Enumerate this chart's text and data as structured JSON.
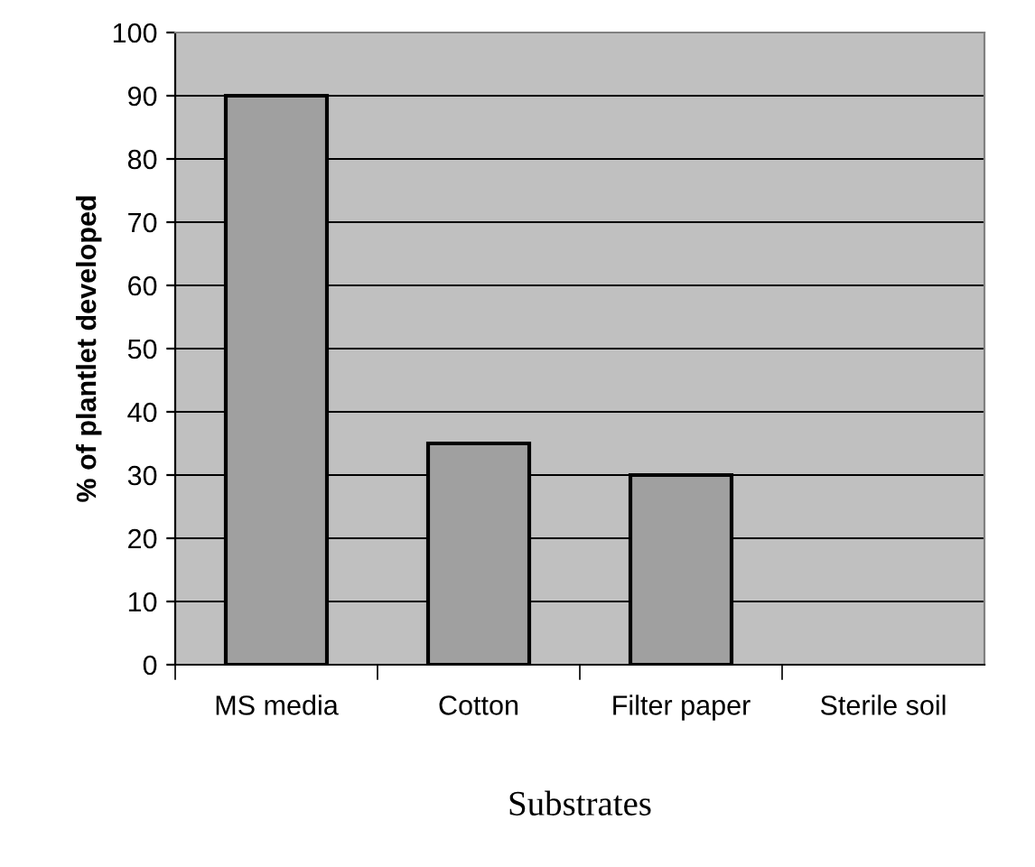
{
  "chart_data": {
    "type": "bar",
    "xlabel": "Substrates",
    "ylabel": "% of plantlet developed",
    "categories": [
      "MS media",
      "Cotton",
      "Filter paper",
      "Sterile soil"
    ],
    "values": [
      90,
      35,
      30,
      0
    ],
    "color": "#a0a0a0",
    "ylim": [
      0,
      100
    ],
    "yticks": [
      0,
      10,
      20,
      30,
      40,
      50,
      60,
      70,
      80,
      90,
      100
    ],
    "grid": "y"
  }
}
